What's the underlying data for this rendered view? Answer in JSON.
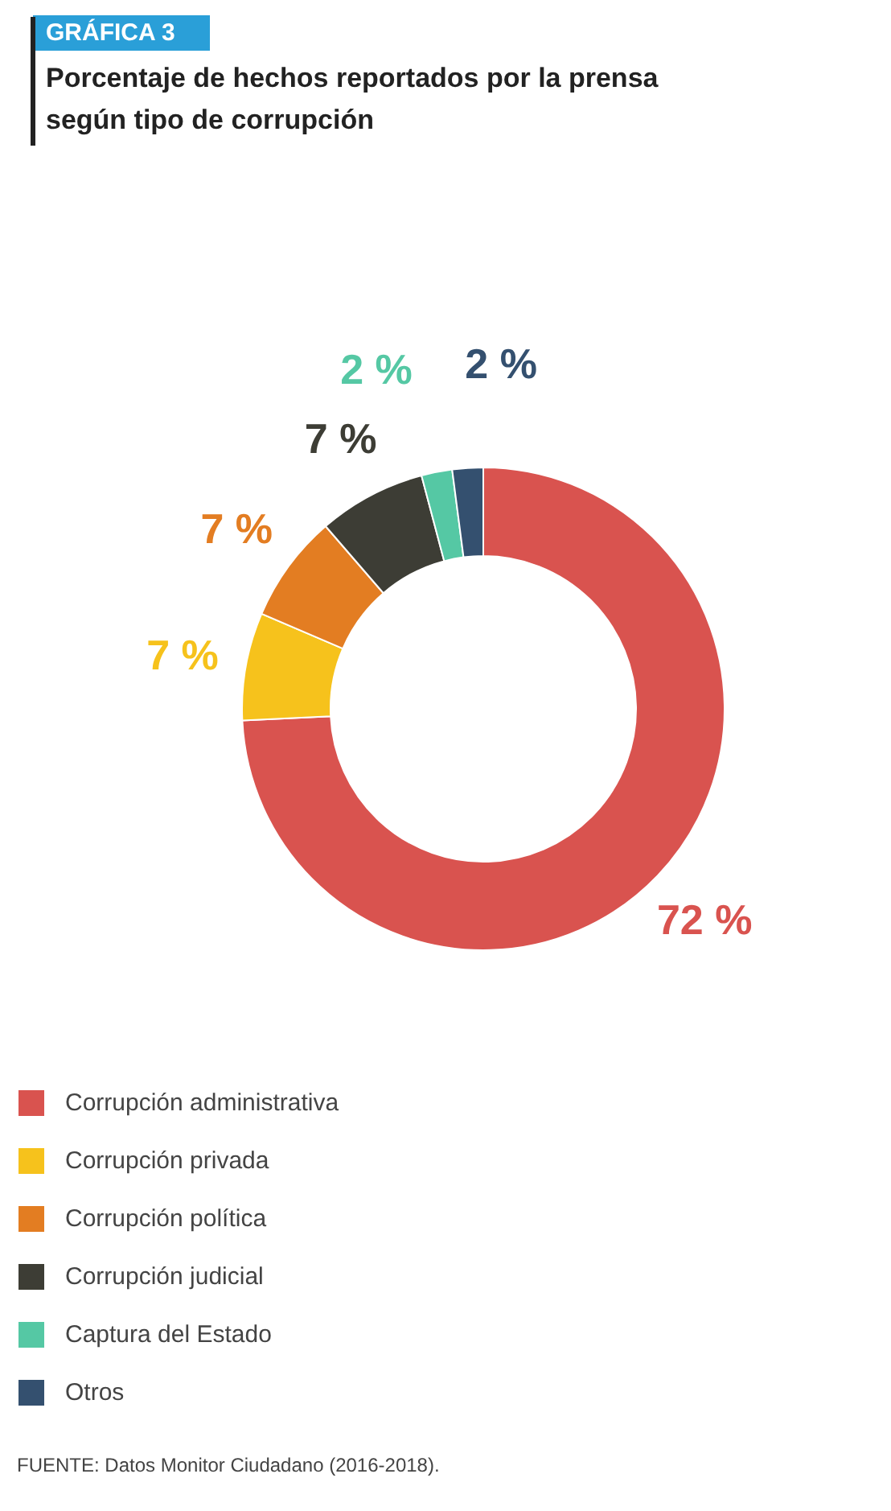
{
  "chart_data": {
    "type": "donut",
    "title": "Porcentaje de hechos reportados por la prensa según tipo de corrupción",
    "annotations": [
      "GRÁFICA 3",
      "FUENTE: Datos Monitor Ciudadano (2016-2018)."
    ],
    "categories": [
      "Corrupción administrativa",
      "Corrupción privada",
      "Corrupción política",
      "Corrupción judicial",
      "Captura del Estado",
      "Otros"
    ],
    "values": [
      72,
      7,
      7,
      7,
      2,
      2
    ],
    "value_labels": [
      "72 %",
      "7 %",
      "7 %",
      "7 %",
      "2 %",
      "2 %"
    ],
    "colors": [
      "#d9534f",
      "#f6c21c",
      "#e37d22",
      "#3d3d35",
      "#55c8a4",
      "#34506f"
    ],
    "legend": "bottom"
  }
}
